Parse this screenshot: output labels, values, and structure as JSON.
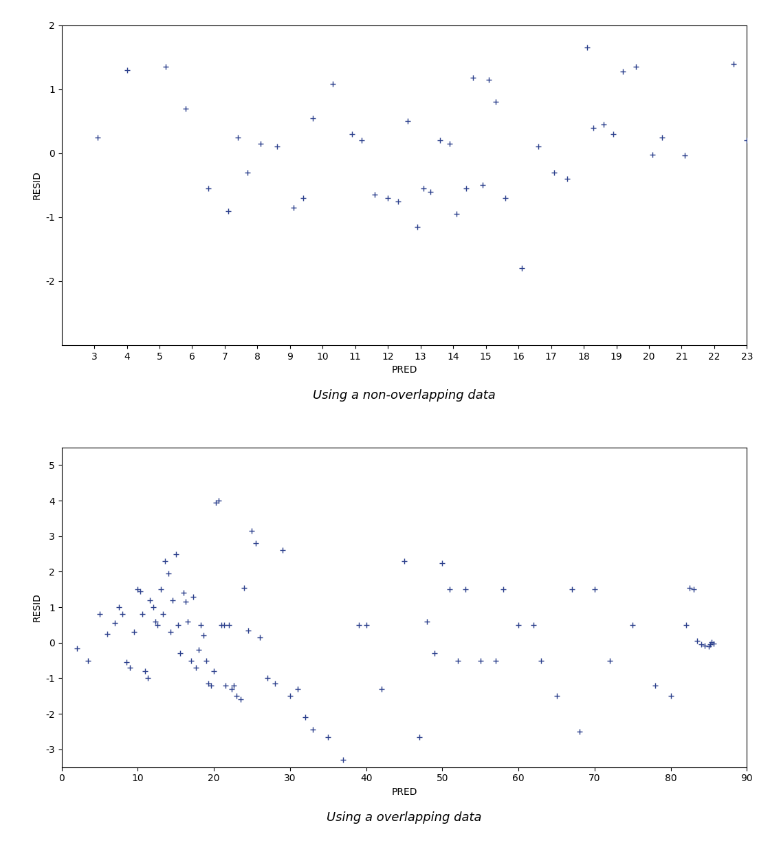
{
  "chart_data": [
    {
      "type": "scatter",
      "title": "Using a non-overlapping data",
      "x_label": "PRED",
      "y_label": "RESID",
      "color": "#2B3F8C",
      "marker": "+",
      "xlim": [
        2,
        23
      ],
      "ylim": [
        -3,
        2
      ],
      "xticks": [
        3,
        4,
        5,
        6,
        7,
        8,
        9,
        10,
        11,
        12,
        13,
        14,
        15,
        16,
        17,
        18,
        19,
        20,
        21,
        22,
        23
      ],
      "yticks": [
        -2,
        -1,
        0,
        1,
        2
      ],
      "x": [
        3.1,
        4.0,
        5.2,
        5.8,
        6.5,
        7.1,
        7.4,
        7.7,
        8.1,
        8.6,
        9.1,
        9.4,
        9.7,
        10.3,
        10.9,
        11.2,
        11.6,
        12.0,
        12.3,
        12.6,
        12.9,
        13.1,
        13.3,
        13.6,
        13.9,
        14.1,
        14.4,
        14.6,
        14.9,
        15.1,
        15.3,
        15.6,
        16.1,
        16.6,
        17.1,
        17.5,
        18.1,
        18.3,
        18.6,
        18.9,
        19.2,
        19.6,
        20.1,
        20.4,
        21.1,
        22.6,
        23.0
      ],
      "values": [
        0.25,
        1.3,
        1.35,
        0.7,
        -0.55,
        -0.9,
        0.25,
        -0.3,
        0.15,
        0.1,
        -0.85,
        -0.7,
        0.55,
        1.08,
        0.3,
        0.2,
        -0.65,
        -0.7,
        -0.75,
        0.5,
        -1.15,
        -0.55,
        -0.6,
        0.2,
        0.15,
        -0.95,
        -0.55,
        1.18,
        -0.5,
        1.15,
        0.8,
        -0.7,
        -1.8,
        0.1,
        -0.3,
        -0.4,
        1.65,
        0.4,
        0.45,
        0.3,
        1.28,
        1.35,
        -0.02,
        0.25,
        -0.03,
        1.4,
        0.2
      ]
    },
    {
      "type": "scatter",
      "title": "Using a overlapping data",
      "x_label": "PRED",
      "y_label": "RESID",
      "color": "#2B3F8C",
      "marker": "+",
      "xlim": [
        0,
        90
      ],
      "ylim": [
        -3.5,
        5.5
      ],
      "xticks": [
        0,
        10,
        20,
        30,
        40,
        50,
        60,
        70,
        80,
        90
      ],
      "yticks": [
        -3,
        -2,
        -1,
        0,
        1,
        2,
        3,
        4,
        5
      ],
      "x": [
        2.0,
        3.5,
        5.0,
        6.0,
        7.0,
        7.5,
        8.0,
        8.5,
        9.0,
        9.5,
        10.0,
        10.3,
        10.6,
        11.0,
        11.3,
        11.6,
        12.0,
        12.3,
        12.6,
        13.0,
        13.3,
        13.6,
        14.0,
        14.3,
        14.6,
        15.0,
        15.3,
        15.6,
        16.0,
        16.3,
        16.6,
        17.0,
        17.3,
        17.6,
        18.0,
        18.3,
        18.6,
        19.0,
        19.3,
        19.6,
        20.0,
        20.3,
        20.6,
        21.0,
        21.3,
        21.5,
        22.0,
        22.3,
        22.6,
        23.0,
        23.5,
        24.0,
        24.5,
        25.0,
        25.5,
        26.0,
        27.0,
        28.0,
        29.0,
        30.0,
        31.0,
        32.0,
        33.0,
        35.0,
        37.0,
        39.0,
        40.0,
        42.0,
        45.0,
        47.0,
        48.0,
        49.0,
        50.0,
        51.0,
        52.0,
        53.0,
        55.0,
        57.0,
        58.0,
        60.0,
        62.0,
        63.0,
        65.0,
        67.0,
        68.0,
        70.0,
        72.0,
        75.0,
        78.0,
        80.0,
        82.0,
        82.5,
        83.0,
        83.5,
        84.0,
        84.5,
        85.0,
        85.2,
        85.4,
        85.6
      ],
      "values": [
        -0.15,
        -0.5,
        0.8,
        0.25,
        0.55,
        1.0,
        0.8,
        -0.55,
        -0.7,
        0.3,
        1.5,
        1.45,
        0.8,
        -0.8,
        -1.0,
        1.2,
        1.0,
        0.6,
        0.5,
        1.5,
        0.8,
        2.3,
        1.95,
        0.3,
        1.2,
        2.5,
        0.5,
        -0.3,
        1.4,
        1.15,
        0.6,
        -0.5,
        1.3,
        -0.7,
        -0.2,
        0.5,
        0.2,
        -0.5,
        -1.15,
        -1.2,
        -0.8,
        3.95,
        4.0,
        0.5,
        0.5,
        -1.2,
        0.5,
        -1.3,
        -1.2,
        -1.5,
        -1.6,
        1.55,
        0.35,
        3.15,
        2.8,
        0.15,
        -1.0,
        -1.15,
        2.6,
        -1.5,
        -1.3,
        -2.1,
        -2.45,
        -2.65,
        -3.3,
        0.5,
        0.5,
        -1.3,
        2.3,
        -2.65,
        0.6,
        -0.3,
        2.25,
        1.5,
        -0.5,
        1.5,
        -0.5,
        -0.5,
        1.5,
        0.5,
        0.5,
        -0.5,
        -1.5,
        1.5,
        -2.5,
        1.5,
        -0.5,
        0.5,
        -1.2,
        -1.5,
        0.5,
        1.55,
        1.5,
        0.05,
        -0.05,
        -0.08,
        -0.1,
        -0.05,
        0.02,
        -0.02
      ]
    }
  ]
}
